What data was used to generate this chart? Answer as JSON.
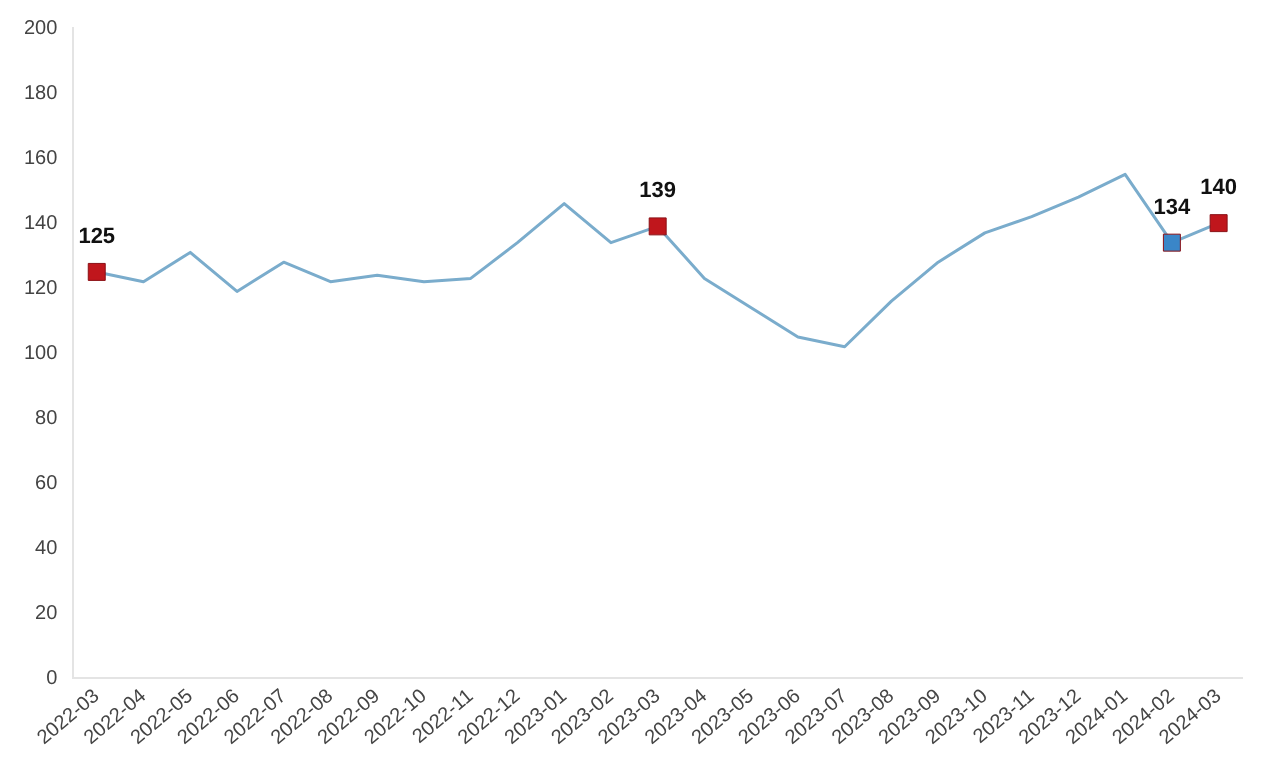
{
  "chart_data": {
    "type": "line",
    "categories": [
      "2022-03",
      "2022-04",
      "2022-05",
      "2022-06",
      "2022-07",
      "2022-08",
      "2022-09",
      "2022-10",
      "2022-11",
      "2022-12",
      "2023-01",
      "2023-02",
      "2023-03",
      "2023-04",
      "2023-05",
      "2023-06",
      "2023-07",
      "2023-08",
      "2023-09",
      "2023-10",
      "2023-11",
      "2023-12",
      "2024-01",
      "2024-02",
      "2024-03"
    ],
    "series": [
      {
        "type": "line",
        "color": "#7aaccc",
        "marker": "none",
        "values": [
          125,
          122,
          131,
          119,
          128,
          122,
          124,
          122,
          123,
          134,
          146,
          134,
          139,
          123,
          114,
          105,
          102,
          116,
          128,
          137,
          142,
          148,
          155,
          134,
          140
        ]
      },
      {
        "type": "scatter",
        "marker": "square",
        "colors": [
          null,
          null,
          null,
          null,
          null,
          null,
          null,
          null,
          null,
          null,
          null,
          null,
          null,
          null,
          null,
          null,
          null,
          null,
          null,
          null,
          null,
          null,
          null,
          "#3a86c8",
          null
        ],
        "color": "#c0161c",
        "values": [
          125,
          null,
          null,
          null,
          null,
          null,
          null,
          null,
          null,
          null,
          null,
          null,
          139,
          null,
          null,
          null,
          null,
          null,
          null,
          null,
          null,
          null,
          null,
          134,
          140
        ],
        "value_labels": [
          "125",
          null,
          null,
          null,
          null,
          null,
          null,
          null,
          null,
          null,
          null,
          null,
          "139",
          null,
          null,
          null,
          null,
          null,
          null,
          null,
          null,
          null,
          null,
          "134",
          "140"
        ]
      }
    ],
    "ylim": [
      0,
      200
    ],
    "yticks": [
      0,
      20,
      40,
      60,
      80,
      100,
      120,
      140,
      160,
      180,
      200
    ],
    "grid": false,
    "legend": false
  }
}
